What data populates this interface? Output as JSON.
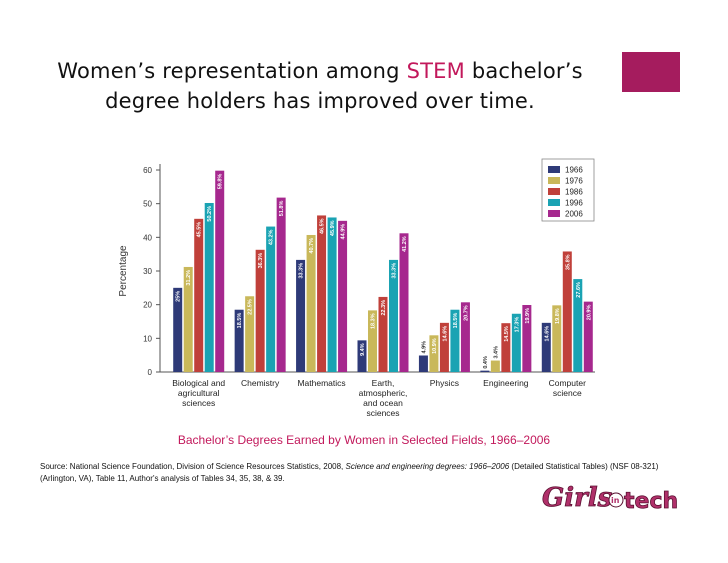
{
  "slide": {
    "title_line1_pre": "Women’s representation among ",
    "title_stem": "STEM",
    "title_line1_post": " bachelor’s",
    "title_line2": "degree holders has improved over time.",
    "caption": "Bachelor’s Degrees Earned by Women in Selected Fields, 1966–2006",
    "source_prefix": "Source: National Science Foundation, Division of Science Resources Statistics, 2008, ",
    "source_italic": "Science and engineering degrees: 1966–2006",
    "source_suffix": " (Detailed Statistical Tables) (NSF 08-321) (Arlington, VA), Table 11, Author's analysis of Tables 34, 35, 38, & 39.",
    "logo_text_main": "Girls",
    "logo_text_small": "in",
    "logo_text_tech": "tech",
    "accent_color": "#a51c5e",
    "stem_color": "#c2185b"
  },
  "chart_data": {
    "type": "bar",
    "ylabel": "Percentage",
    "ylim": [
      0,
      60
    ],
    "yticks": [
      0,
      10,
      20,
      30,
      40,
      50,
      60
    ],
    "grid": false,
    "legend_position": "top-right",
    "categories": [
      [
        "Biological and",
        "agricultural",
        "sciences"
      ],
      [
        "Chemistry"
      ],
      [
        "Mathematics"
      ],
      [
        "Earth,",
        "atmospheric,",
        "and ocean",
        "sciences"
      ],
      [
        "Physics"
      ],
      [
        "Engineering"
      ],
      [
        "Computer",
        "science"
      ]
    ],
    "series": [
      {
        "name": "1966",
        "color": "#2e3a78",
        "values": [
          25,
          18.5,
          33.3,
          9.4,
          4.9,
          0.4,
          14.6
        ],
        "labels": [
          "25%",
          "18.5%",
          "33.3%",
          "9.4%",
          "4.9%",
          "0.4%",
          "14.6%"
        ]
      },
      {
        "name": "1976",
        "color": "#c9b85a",
        "values": [
          31.2,
          22.5,
          40.7,
          18.3,
          10.9,
          3.4,
          19.8
        ],
        "labels": [
          "31.2%",
          "22.5%",
          "40.7%",
          "18.3%",
          "10.9%",
          "3.4%",
          "19.8%"
        ]
      },
      {
        "name": "1986",
        "color": "#c0403a",
        "values": [
          45.5,
          36.3,
          46.5,
          22.3,
          14.6,
          14.5,
          35.8
        ],
        "labels": [
          "45.5%",
          "36.3%",
          "46.5%",
          "22.3%",
          "14.6%",
          "14.5%",
          "35.8%"
        ]
      },
      {
        "name": "1996",
        "color": "#1aa3b3",
        "values": [
          50.2,
          43.2,
          45.9,
          33.3,
          18.5,
          17.3,
          27.6
        ],
        "labels": [
          "50.2%",
          "43.2%",
          "45.9%",
          "33.3%",
          "18.5%",
          "17.3%",
          "27.6%"
        ]
      },
      {
        "name": "2006",
        "color": "#a6288e",
        "values": [
          59.8,
          51.8,
          44.9,
          41.2,
          20.7,
          19.9,
          20.9
        ],
        "labels": [
          "59.8%",
          "51.8%",
          "44.9%",
          "41.2%",
          "20.7%",
          "19.9%",
          "20.9%"
        ]
      }
    ]
  }
}
